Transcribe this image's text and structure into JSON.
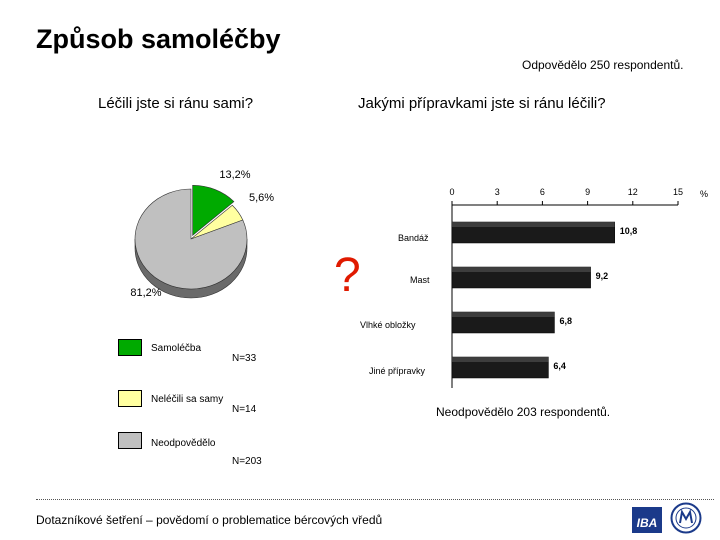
{
  "title": "Způsob samoléčby",
  "respondents_top": "Odpovědělo 250 respondentů.",
  "respondents_bottom": "Neodpovědělo 203 respondentů.",
  "question_mark": "?",
  "footer_text": "Dotazníkové šetření – povědomí o problematice bércových vředů",
  "logo_text": "IBA",
  "chart_data": [
    {
      "type": "pie",
      "title": "Léčili jste si ránu sami?",
      "slices": [
        {
          "label": "Samoléčba",
          "n": "N=33",
          "value": 13.2,
          "value_label": "13,2%",
          "color": "#00aa00"
        },
        {
          "label": "Neléčili sa samy",
          "n": "N=14",
          "value": 5.6,
          "value_label": "5,6%",
          "color": "#ffffa0"
        },
        {
          "label": "Neodpovědělo",
          "n": "N=203",
          "value": 81.2,
          "value_label": "81,2%",
          "color": "#c0c0c0"
        }
      ]
    },
    {
      "type": "bar",
      "orientation": "horizontal",
      "title": "Jakými přípravkami jste si ránu léčili?",
      "categories": [
        "Bandáž",
        "Mast",
        "Vlhké obložky",
        "Jiné přípravky"
      ],
      "values": [
        10.8,
        9.2,
        6.8,
        6.4
      ],
      "value_labels": [
        "10,8",
        "9,2",
        "6,8",
        "6,4"
      ],
      "x_ticks": [
        "0",
        "3",
        "6",
        "9",
        "12",
        "15"
      ],
      "xlim": [
        0,
        15
      ],
      "unit": "%",
      "color": "#1a1a1a"
    }
  ]
}
